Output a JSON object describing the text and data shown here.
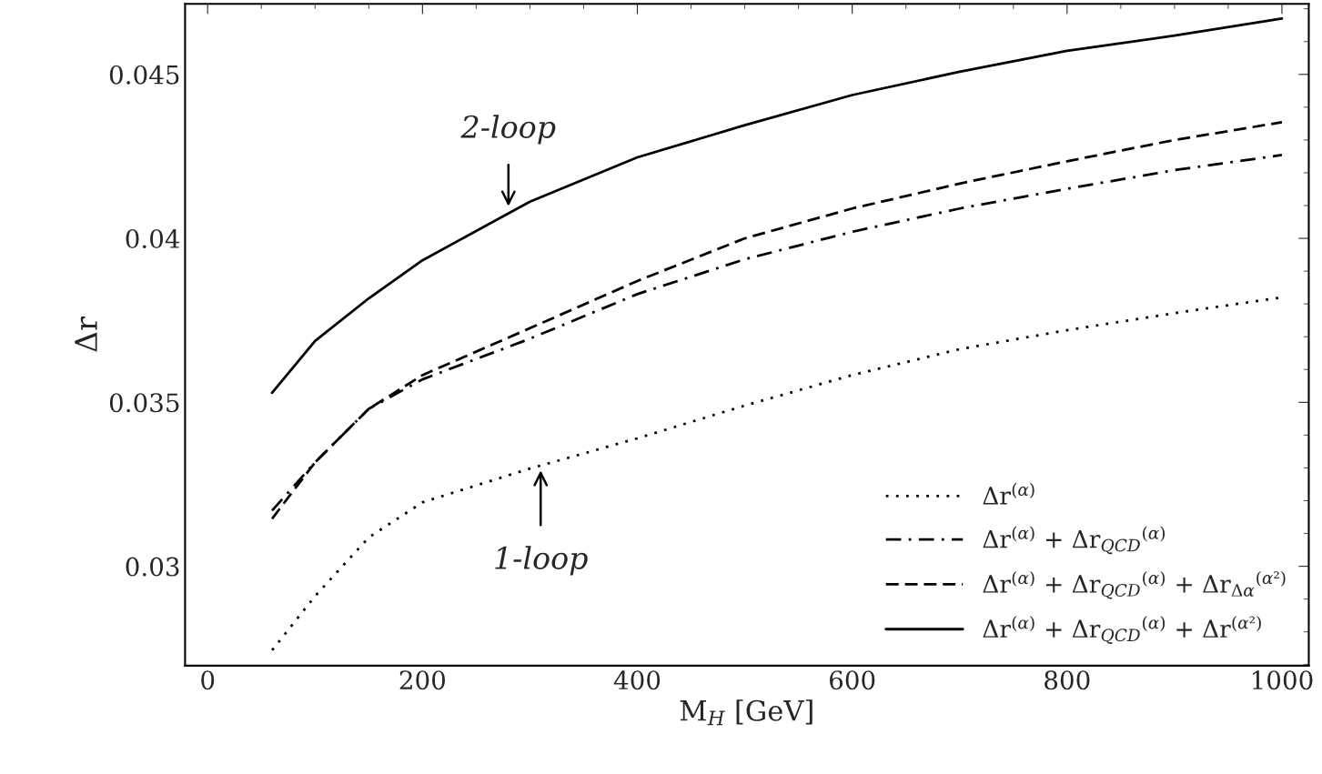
{
  "chart_data": {
    "type": "line",
    "xlabel": "M$_{H}$ [GeV]",
    "ylabel": "Δr",
    "x": [
      60,
      100,
      150,
      200,
      300,
      400,
      500,
      600,
      700,
      800,
      900,
      1000
    ],
    "series": [
      {
        "name": "Δr$^{(α)}$",
        "color": "#000000",
        "line_style": "dotted",
        "values": [
          0.02744,
          0.02909,
          0.03088,
          0.03195,
          0.03298,
          0.0339,
          0.0349,
          0.03583,
          0.03662,
          0.0372,
          0.03772,
          0.0382
        ]
      },
      {
        "name": "Δr$^{(α)}$ + Δr$_{QCD}$$^{(α)}$",
        "color": "#000000",
        "line_style": "dashdot",
        "values": [
          0.0317,
          0.03317,
          0.0348,
          0.0357,
          0.03694,
          0.0383,
          0.03936,
          0.0402,
          0.04091,
          0.04151,
          0.04208,
          0.04254
        ]
      },
      {
        "name": "Δr$^{(α)}$ + Δr$_{QCD}$$^{(α)}$ + Δr$_{Δα}$$^{(α²)}$",
        "color": "#000000",
        "line_style": "dashed",
        "values": [
          0.03145,
          0.03317,
          0.0348,
          0.03583,
          0.03726,
          0.0387,
          0.04,
          0.04091,
          0.04167,
          0.04235,
          0.043,
          0.04354
        ]
      },
      {
        "name": "Δr$^{(α)}$ + Δr$_{QCD}$$^{(α)}$ + Δr$^{(α²)}$",
        "color": "#000000",
        "line_style": "solid",
        "values": [
          0.03529,
          0.03687,
          0.03817,
          0.03933,
          0.04112,
          0.04247,
          0.04345,
          0.04437,
          0.04508,
          0.04572,
          0.04618,
          0.0467
        ]
      }
    ],
    "annotations": [
      {
        "text": "2-loop",
        "x": 280,
        "y": 0.0409
      },
      {
        "text": "1-loop",
        "x": 310,
        "y": 0.033
      }
    ],
    "xlim": [
      -21,
      1025
    ],
    "ylim": [
      0.02697,
      0.04715
    ],
    "xticks": [
      0,
      200,
      400,
      600,
      800,
      1000
    ],
    "yticks": [
      0.03,
      0.035,
      0.04,
      0.045
    ],
    "legend": "bottom right",
    "grid": false,
    "marker": "none"
  }
}
